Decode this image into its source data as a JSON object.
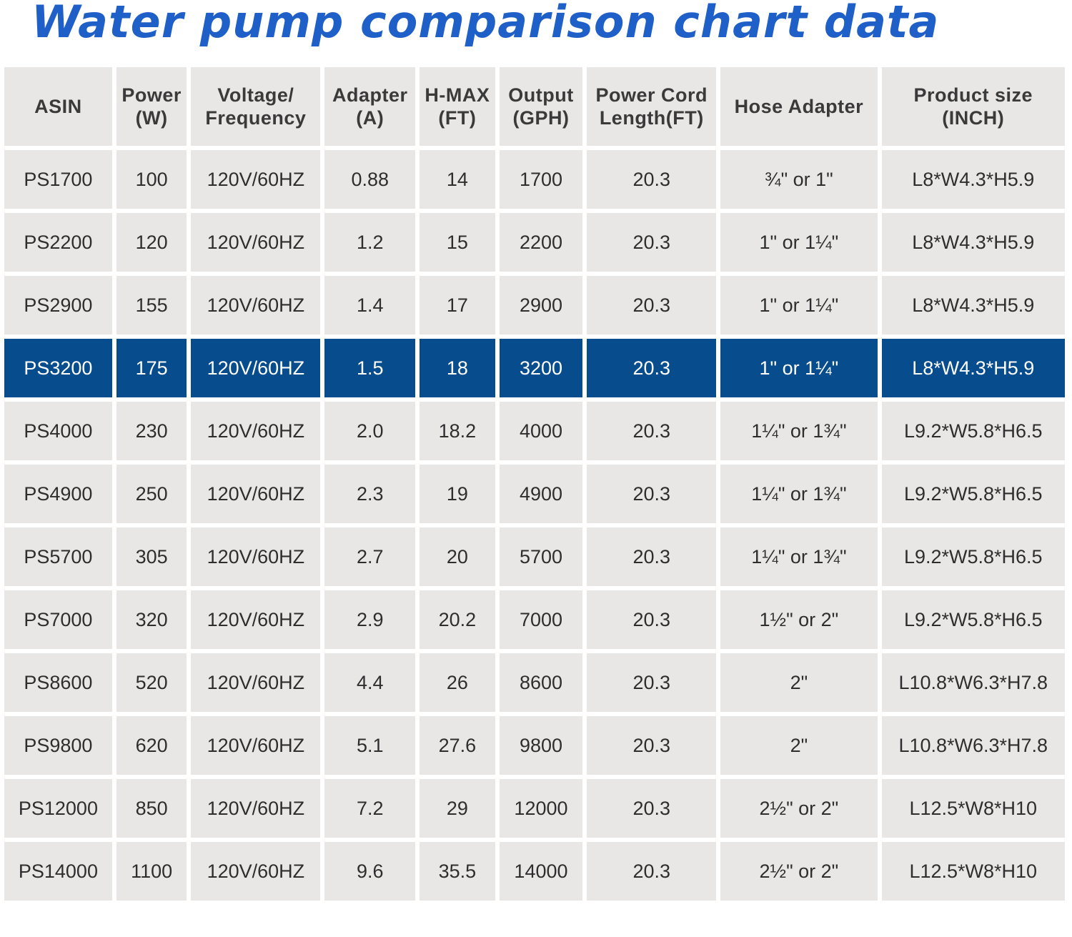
{
  "title": "Water pump comparison chart data",
  "colors": {
    "title": "#1f5fc8",
    "cell_background": "#e9e6e6",
    "highlight_background": "#074c8c",
    "highlight_text": "#ffffff",
    "text": "#2e2e2e"
  },
  "table": {
    "headers": [
      {
        "line1": "ASIN",
        "line2": ""
      },
      {
        "line1": "Power",
        "line2": "(W)"
      },
      {
        "line1": "Voltage/",
        "line2": "Frequency"
      },
      {
        "line1": "Adapter",
        "line2": "(A)"
      },
      {
        "line1": "H-MAX",
        "line2": "(FT)"
      },
      {
        "line1": "Output",
        "line2": "(GPH)"
      },
      {
        "line1": "Power Cord",
        "line2": "Length(FT)"
      },
      {
        "line1": "Hose Adapter",
        "line2": ""
      },
      {
        "line1": "Product size",
        "line2": "(INCH)"
      }
    ],
    "highlighted_row": 3,
    "rows": [
      [
        "PS1700",
        "100",
        "120V/60HZ",
        "0.88",
        "14",
        "1700",
        "20.3",
        "¾\" or 1\"",
        "L8*W4.3*H5.9"
      ],
      [
        "PS2200",
        "120",
        "120V/60HZ",
        "1.2",
        "15",
        "2200",
        "20.3",
        "1\" or 1¼\"",
        "L8*W4.3*H5.9"
      ],
      [
        "PS2900",
        "155",
        "120V/60HZ",
        "1.4",
        "17",
        "2900",
        "20.3",
        "1\" or 1¼\"",
        "L8*W4.3*H5.9"
      ],
      [
        "PS3200",
        "175",
        "120V/60HZ",
        "1.5",
        "18",
        "3200",
        "20.3",
        "1\" or 1¼\"",
        "L8*W4.3*H5.9"
      ],
      [
        "PS4000",
        "230",
        "120V/60HZ",
        "2.0",
        "18.2",
        "4000",
        "20.3",
        "1¼\" or 1¾\"",
        "L9.2*W5.8*H6.5"
      ],
      [
        "PS4900",
        "250",
        "120V/60HZ",
        "2.3",
        "19",
        "4900",
        "20.3",
        "1¼\" or 1¾\"",
        "L9.2*W5.8*H6.5"
      ],
      [
        "PS5700",
        "305",
        "120V/60HZ",
        "2.7",
        "20",
        "5700",
        "20.3",
        "1¼\" or 1¾\"",
        "L9.2*W5.8*H6.5"
      ],
      [
        "PS7000",
        "320",
        "120V/60HZ",
        "2.9",
        "20.2",
        "7000",
        "20.3",
        "1½\" or 2\"",
        "L9.2*W5.8*H6.5"
      ],
      [
        "PS8600",
        "520",
        "120V/60HZ",
        "4.4",
        "26",
        "8600",
        "20.3",
        "2\"",
        "L10.8*W6.3*H7.8"
      ],
      [
        "PS9800",
        "620",
        "120V/60HZ",
        "5.1",
        "27.6",
        "9800",
        "20.3",
        "2\"",
        "L10.8*W6.3*H7.8"
      ],
      [
        "PS12000",
        "850",
        "120V/60HZ",
        "7.2",
        "29",
        "12000",
        "20.3",
        "2½\" or 2\"",
        "L12.5*W8*H10"
      ],
      [
        "PS14000",
        "1100",
        "120V/60HZ",
        "9.6",
        "35.5",
        "14000",
        "20.3",
        "2½\" or 2\"",
        "L12.5*W8*H10"
      ]
    ]
  },
  "chart_data": {
    "type": "table",
    "title": "Water pump comparison chart data",
    "columns": [
      "ASIN",
      "Power (W)",
      "Voltage/Frequency",
      "Adapter (A)",
      "H-MAX (FT)",
      "Output (GPH)",
      "Power Cord Length(FT)",
      "Hose Adapter",
      "Product size (INCH)"
    ],
    "rows": [
      [
        "PS1700",
        100,
        "120V/60HZ",
        0.88,
        14,
        1700,
        20.3,
        "¾\" or 1\"",
        "L8*W4.3*H5.9"
      ],
      [
        "PS2200",
        120,
        "120V/60HZ",
        1.2,
        15,
        2200,
        20.3,
        "1\" or 1¼\"",
        "L8*W4.3*H5.9"
      ],
      [
        "PS2900",
        155,
        "120V/60HZ",
        1.4,
        17,
        2900,
        20.3,
        "1\" or 1¼\"",
        "L8*W4.3*H5.9"
      ],
      [
        "PS3200",
        175,
        "120V/60HZ",
        1.5,
        18,
        3200,
        20.3,
        "1\" or 1¼\"",
        "L8*W4.3*H5.9"
      ],
      [
        "PS4000",
        230,
        "120V/60HZ",
        2.0,
        18.2,
        4000,
        20.3,
        "1¼\" or 1¾\"",
        "L9.2*W5.8*H6.5"
      ],
      [
        "PS4900",
        250,
        "120V/60HZ",
        2.3,
        19,
        4900,
        20.3,
        "1¼\" or 1¾\"",
        "L9.2*W5.8*H6.5"
      ],
      [
        "PS5700",
        305,
        "120V/60HZ",
        2.7,
        20,
        5700,
        20.3,
        "1¼\" or 1¾\"",
        "L9.2*W5.8*H6.5"
      ],
      [
        "PS7000",
        320,
        "120V/60HZ",
        2.9,
        20.2,
        7000,
        20.3,
        "1½\" or 2\"",
        "L9.2*W5.8*H6.5"
      ],
      [
        "PS8600",
        520,
        "120V/60HZ",
        4.4,
        26,
        8600,
        20.3,
        "2\"",
        "L10.8*W6.3*H7.8"
      ],
      [
        "PS9800",
        620,
        "120V/60HZ",
        5.1,
        27.6,
        9800,
        20.3,
        "2\"",
        "L10.8*W6.3*H7.8"
      ],
      [
        "PS12000",
        850,
        "120V/60HZ",
        7.2,
        29,
        12000,
        20.3,
        "2½\" or 2\"",
        "L12.5*W8*H10"
      ],
      [
        "PS14000",
        1100,
        "120V/60HZ",
        9.6,
        35.5,
        14000,
        20.3,
        "2½\" or 2\"",
        "L12.5*W8*H10"
      ]
    ],
    "highlighted_row": "PS3200"
  }
}
